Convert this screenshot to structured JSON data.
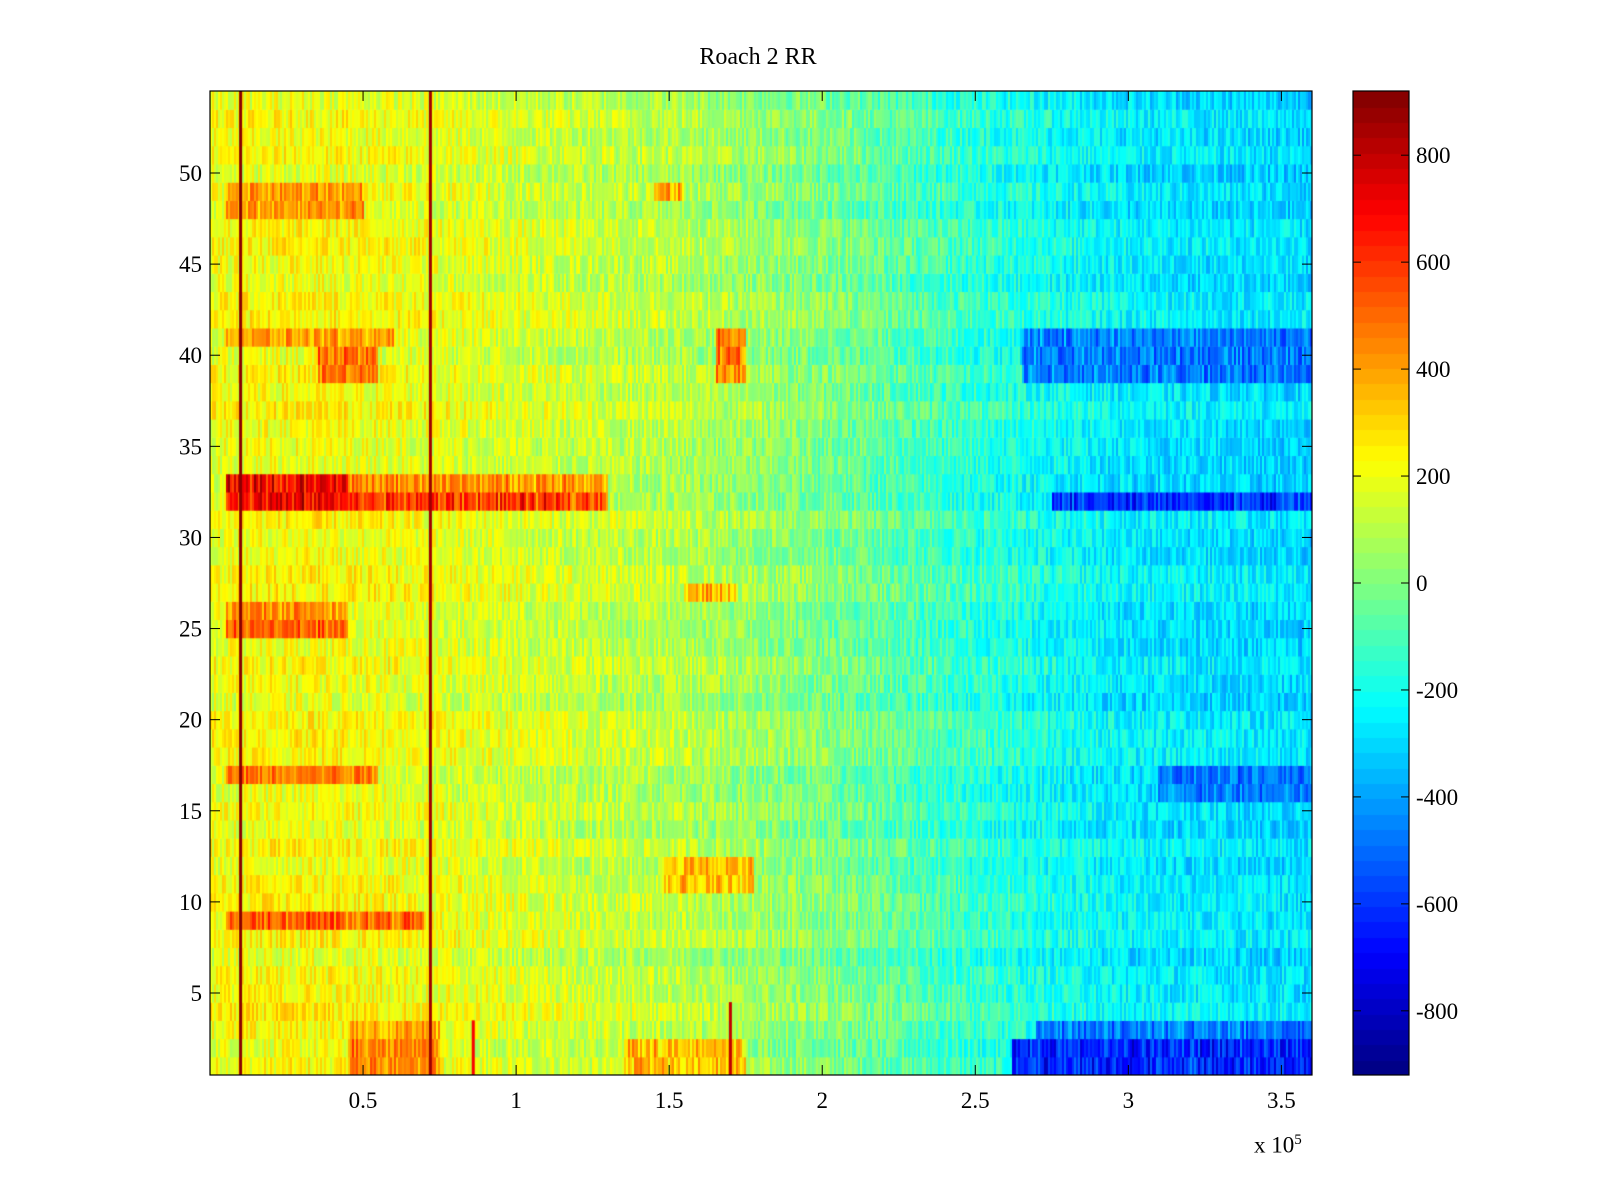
{
  "chart_data": {
    "type": "heatmap",
    "title": "Roach 2 RR",
    "xlabel": "",
    "ylabel": "",
    "x_scale_label": {
      "prefix": "x 10",
      "exponent": "5"
    },
    "xlim": [
      0,
      360000
    ],
    "ylim": [
      0.5,
      54.5
    ],
    "x_ticks": [
      {
        "value": 50000,
        "label": "0.5"
      },
      {
        "value": 100000,
        "label": "1"
      },
      {
        "value": 150000,
        "label": "1.5"
      },
      {
        "value": 200000,
        "label": "2"
      },
      {
        "value": 250000,
        "label": "2.5"
      },
      {
        "value": 300000,
        "label": "3"
      },
      {
        "value": 350000,
        "label": "3.5"
      }
    ],
    "y_ticks": [
      {
        "value": 5,
        "label": "5"
      },
      {
        "value": 10,
        "label": "10"
      },
      {
        "value": 15,
        "label": "15"
      },
      {
        "value": 20,
        "label": "20"
      },
      {
        "value": 25,
        "label": "25"
      },
      {
        "value": 30,
        "label": "30"
      },
      {
        "value": 35,
        "label": "35"
      },
      {
        "value": 40,
        "label": "40"
      },
      {
        "value": 45,
        "label": "45"
      },
      {
        "value": 50,
        "label": "50"
      }
    ],
    "colorbar": {
      "colormap": "jet",
      "clim": [
        -920,
        920
      ],
      "ticks": [
        {
          "value": 800,
          "label": "800"
        },
        {
          "value": 600,
          "label": "600"
        },
        {
          "value": 400,
          "label": "400"
        },
        {
          "value": 200,
          "label": "200"
        },
        {
          "value": 0,
          "label": "0"
        },
        {
          "value": -200,
          "label": "-200"
        },
        {
          "value": -400,
          "label": "-400"
        },
        {
          "value": -600,
          "label": "-600"
        },
        {
          "value": -800,
          "label": "-800"
        }
      ]
    },
    "rows": 54,
    "row_profile_x": [
      0,
      30000,
      60000,
      100000,
      150000,
      200000,
      250000,
      300000,
      360000
    ],
    "row_profile_values": [
      200,
      220,
      200,
      150,
      100,
      0,
      -150,
      -260,
      -300
    ],
    "row_features": [
      {
        "rows": [
          1,
          2
        ],
        "x": [
          45000,
          75000
        ],
        "value": 520
      },
      {
        "rows": [
          1,
          2
        ],
        "x": [
          135000,
          175000
        ],
        "value": 420
      },
      {
        "rows": [
          1,
          2
        ],
        "x": [
          262000,
          360000
        ],
        "value": -720
      },
      {
        "rows": [
          3
        ],
        "x": [
          45000,
          75000
        ],
        "value": 430
      },
      {
        "rows": [
          3
        ],
        "x": [
          270000,
          360000
        ],
        "value": -520
      },
      {
        "rows": [
          9
        ],
        "x": [
          5000,
          70000
        ],
        "value": 600
      },
      {
        "rows": [
          11,
          12
        ],
        "x": [
          148000,
          178000
        ],
        "value": 420
      },
      {
        "rows": [
          17
        ],
        "x": [
          5000,
          55000
        ],
        "value": 550
      },
      {
        "rows": [
          16,
          17
        ],
        "x": [
          310000,
          360000
        ],
        "value": -520
      },
      {
        "rows": [
          25
        ],
        "x": [
          5000,
          45000
        ],
        "value": 600
      },
      {
        "rows": [
          26
        ],
        "x": [
          5000,
          45000
        ],
        "value": 500
      },
      {
        "rows": [
          27
        ],
        "x": [
          155000,
          172000
        ],
        "value": 420
      },
      {
        "rows": [
          32,
          33
        ],
        "x": [
          5000,
          45000
        ],
        "value": 820
      },
      {
        "rows": [
          32
        ],
        "x": [
          45000,
          130000
        ],
        "value": 700
      },
      {
        "rows": [
          32
        ],
        "x": [
          275000,
          360000
        ],
        "value": -700
      },
      {
        "rows": [
          33
        ],
        "x": [
          45000,
          130000
        ],
        "value": 500
      },
      {
        "rows": [
          39,
          40
        ],
        "x": [
          35000,
          55000
        ],
        "value": 560
      },
      {
        "rows": [
          41
        ],
        "x": [
          35000,
          55000
        ],
        "value": 620
      },
      {
        "rows": [
          41
        ],
        "x": [
          5000,
          60000
        ],
        "value": 440
      },
      {
        "rows": [
          39,
          40,
          41
        ],
        "x": [
          165000,
          175000
        ],
        "value": 560
      },
      {
        "rows": [
          39,
          40,
          41
        ],
        "x": [
          265000,
          360000
        ],
        "value": -520
      },
      {
        "rows": [
          48,
          49
        ],
        "x": [
          5000,
          50000
        ],
        "value": 460
      },
      {
        "rows": [
          49
        ],
        "x": [
          145000,
          155000
        ],
        "value": 440
      }
    ],
    "vertical_lines": [
      {
        "x": 10000,
        "value": 900
      },
      {
        "x": 72000,
        "value": 860
      },
      {
        "x": 86000,
        "value": 700,
        "rows": [
          1,
          3
        ]
      },
      {
        "x": 170000,
        "value": 800,
        "rows": [
          1,
          4
        ]
      }
    ]
  }
}
